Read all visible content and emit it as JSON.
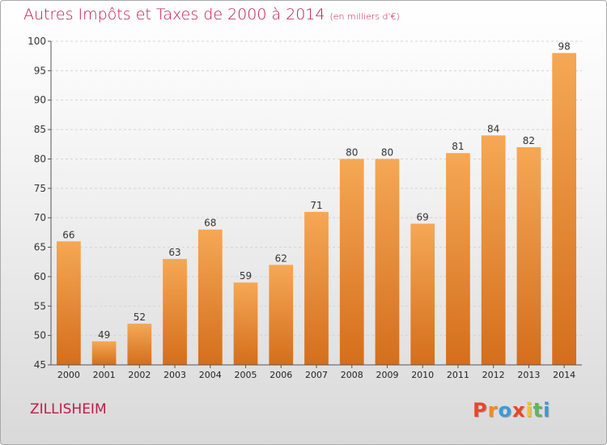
{
  "header": {
    "title": "Autres Impôts et Taxes de 2000 à 2014",
    "unit": "(en milliers d'€)"
  },
  "footer": {
    "commune": "ZILLISHEIM",
    "logo_letters": [
      "P",
      "r",
      "o",
      "x",
      "i",
      "t",
      "i"
    ],
    "logo_colors": [
      "#e8472b",
      "#f08c1f",
      "#3a9ad9",
      "#e8472b",
      "#f5c42a",
      "#5cb85c",
      "#3a9ad9"
    ]
  },
  "colors": {
    "bar_light": "#f5a855",
    "bar_dark": "#d46e1c",
    "title": "#c01a4a"
  },
  "chart_data": {
    "type": "bar",
    "categories": [
      "2000",
      "2001",
      "2002",
      "2003",
      "2004",
      "2005",
      "2006",
      "2007",
      "2008",
      "2009",
      "2010",
      "2011",
      "2012",
      "2013",
      "2014"
    ],
    "values": [
      66,
      49,
      52,
      63,
      68,
      59,
      62,
      71,
      80,
      80,
      69,
      81,
      84,
      82,
      98
    ],
    "yticks": [
      45,
      50,
      55,
      60,
      65,
      70,
      75,
      80,
      85,
      90,
      95,
      100
    ],
    "ylim": [
      45,
      100
    ],
    "grid": true
  }
}
